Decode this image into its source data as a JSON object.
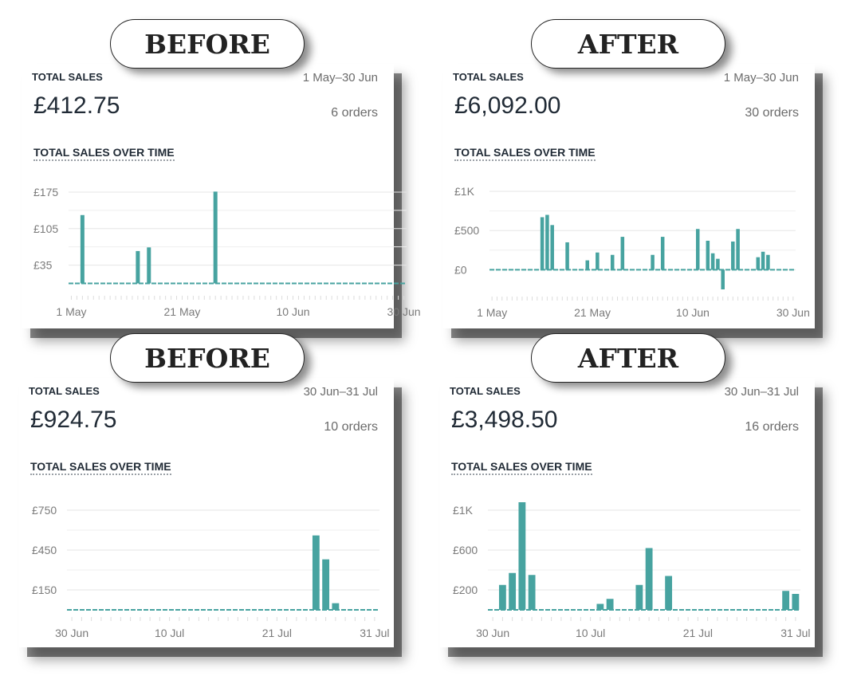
{
  "panels": [
    {
      "label": "BEFORE",
      "total_sales_label": "TOTAL SALES",
      "date_range": "1 May–30 Jun",
      "amount": "£412.75",
      "orders": "6 orders",
      "subtitle": "TOTAL SALES OVER TIME",
      "color": "#47a3a0",
      "chart_data": {
        "type": "bar",
        "x_start": "1 May",
        "x_end": "30 Jun",
        "ylim": [
          -10,
          175
        ],
        "y_ticks": [
          {
            "value": 35,
            "label": "£35"
          },
          {
            "value": 105,
            "label": "£105"
          },
          {
            "value": 175,
            "label": "£175"
          }
        ],
        "x_ticks": [
          {
            "day": 0,
            "label": "1 May"
          },
          {
            "day": 20,
            "label": "21 May"
          },
          {
            "day": 40,
            "label": "10 Jun"
          },
          {
            "day": 60,
            "label": "30 Jun"
          }
        ],
        "num_days": 61,
        "values": [
          {
            "day": 2,
            "value": 131
          },
          {
            "day": 12,
            "value": 62
          },
          {
            "day": 14,
            "value": 69
          },
          {
            "day": 26,
            "value": 176
          }
        ]
      }
    },
    {
      "label": "AFTER",
      "total_sales_label": "TOTAL SALES",
      "date_range": "1 May–30 Jun",
      "amount": "£6,092.00",
      "orders": "30 orders",
      "subtitle": "TOTAL SALES OVER TIME",
      "color": "#47a3a0",
      "chart_data": {
        "type": "bar",
        "x_start": "1 May",
        "x_end": "30 Jun",
        "ylim": [
          -250,
          1000
        ],
        "y_ticks": [
          {
            "value": 0,
            "label": "£0"
          },
          {
            "value": 500,
            "label": "£500"
          },
          {
            "value": 1000,
            "label": "£1K"
          }
        ],
        "x_ticks": [
          {
            "day": 0,
            "label": "1 May"
          },
          {
            "day": 20,
            "label": "21 May"
          },
          {
            "day": 40,
            "label": "10 Jun"
          },
          {
            "day": 60,
            "label": "30 Jun"
          }
        ],
        "num_days": 61,
        "values": [
          {
            "day": 10,
            "value": 670
          },
          {
            "day": 11,
            "value": 700
          },
          {
            "day": 12,
            "value": 570
          },
          {
            "day": 15,
            "value": 350
          },
          {
            "day": 19,
            "value": 120
          },
          {
            "day": 21,
            "value": 220
          },
          {
            "day": 24,
            "value": 190
          },
          {
            "day": 26,
            "value": 420
          },
          {
            "day": 32,
            "value": 190
          },
          {
            "day": 34,
            "value": 420
          },
          {
            "day": 41,
            "value": 520
          },
          {
            "day": 43,
            "value": 370
          },
          {
            "day": 44,
            "value": 210
          },
          {
            "day": 45,
            "value": 140
          },
          {
            "day": 46,
            "value": -250
          },
          {
            "day": 48,
            "value": 360
          },
          {
            "day": 49,
            "value": 520
          },
          {
            "day": 53,
            "value": 160
          },
          {
            "day": 54,
            "value": 230
          },
          {
            "day": 55,
            "value": 190
          }
        ]
      }
    },
    {
      "label": "BEFORE",
      "total_sales_label": "TOTAL SALES",
      "date_range": "30 Jun–31 Jul",
      "amount": "£924.75",
      "orders": "10 orders",
      "subtitle": "TOTAL SALES OVER TIME",
      "color": "#47a3a0",
      "chart_data": {
        "type": "bar",
        "x_start": "30 Jun",
        "x_end": "31 Jul",
        "ylim": [
          0,
          750
        ],
        "y_ticks": [
          {
            "value": 150,
            "label": "£150"
          },
          {
            "value": 450,
            "label": "£450"
          },
          {
            "value": 750,
            "label": "£750"
          }
        ],
        "x_ticks": [
          {
            "day": 0,
            "label": "30 Jun"
          },
          {
            "day": 10,
            "label": "10 Jul"
          },
          {
            "day": 21,
            "label": "21 Jul"
          },
          {
            "day": 31,
            "label": "31 Jul"
          }
        ],
        "num_days": 32,
        "values": [
          {
            "day": 25,
            "value": 560
          },
          {
            "day": 26,
            "value": 380
          },
          {
            "day": 27,
            "value": 50
          }
        ]
      }
    },
    {
      "label": "AFTER",
      "total_sales_label": "TOTAL SALES",
      "date_range": "30 Jun–31 Jul",
      "amount": "£3,498.50",
      "orders": "16 orders",
      "subtitle": "TOTAL SALES OVER TIME",
      "color": "#47a3a0",
      "chart_data": {
        "type": "bar",
        "x_start": "30 Jun",
        "x_end": "31 Jul",
        "ylim": [
          0,
          1000
        ],
        "y_ticks": [
          {
            "value": 200,
            "label": "£200"
          },
          {
            "value": 600,
            "label": "£600"
          },
          {
            "value": 1000,
            "label": "£1K"
          }
        ],
        "x_ticks": [
          {
            "day": 0,
            "label": "30 Jun"
          },
          {
            "day": 10,
            "label": "10 Jul"
          },
          {
            "day": 21,
            "label": "21 Jul"
          },
          {
            "day": 31,
            "label": "31 Jul"
          }
        ],
        "num_days": 32,
        "values": [
          {
            "day": 1,
            "value": 250
          },
          {
            "day": 2,
            "value": 370
          },
          {
            "day": 3,
            "value": 1080
          },
          {
            "day": 4,
            "value": 350
          },
          {
            "day": 11,
            "value": 60
          },
          {
            "day": 12,
            "value": 110
          },
          {
            "day": 15,
            "value": 250
          },
          {
            "day": 16,
            "value": 620
          },
          {
            "day": 18,
            "value": 340
          },
          {
            "day": 30,
            "value": 190
          },
          {
            "day": 31,
            "value": 160
          }
        ]
      }
    }
  ]
}
